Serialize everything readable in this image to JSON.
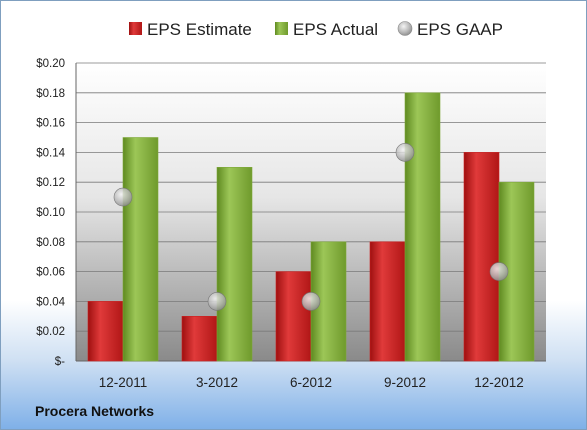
{
  "company": "Procera Networks",
  "colors": {
    "estimate": "#cc2222",
    "actual": "#7fa83a",
    "gaap": "#a0a0a0"
  },
  "chart_data": {
    "type": "bar",
    "categories": [
      "12-2011",
      "3-2012",
      "6-2012",
      "9-2012",
      "12-2012"
    ],
    "series": [
      {
        "name": "EPS Estimate",
        "type": "bar",
        "values": [
          0.04,
          0.03,
          0.06,
          0.08,
          0.14
        ]
      },
      {
        "name": "EPS Actual",
        "type": "bar",
        "values": [
          0.15,
          0.13,
          0.08,
          0.18,
          0.12
        ]
      },
      {
        "name": "EPS GAAP",
        "type": "marker",
        "values": [
          0.11,
          0.04,
          0.04,
          0.14,
          0.06
        ]
      }
    ],
    "ylim": [
      0,
      0.2
    ],
    "yticks": [
      0,
      0.02,
      0.04,
      0.06,
      0.08,
      0.1,
      0.12,
      0.14,
      0.16,
      0.18,
      0.2
    ],
    "ytick_labels": [
      "$-",
      "$0.02",
      "$0.04",
      "$0.06",
      "$0.08",
      "$0.10",
      "$0.12",
      "$0.14",
      "$0.16",
      "$0.18",
      "$0.20"
    ],
    "legend": "top",
    "grid": true
  }
}
